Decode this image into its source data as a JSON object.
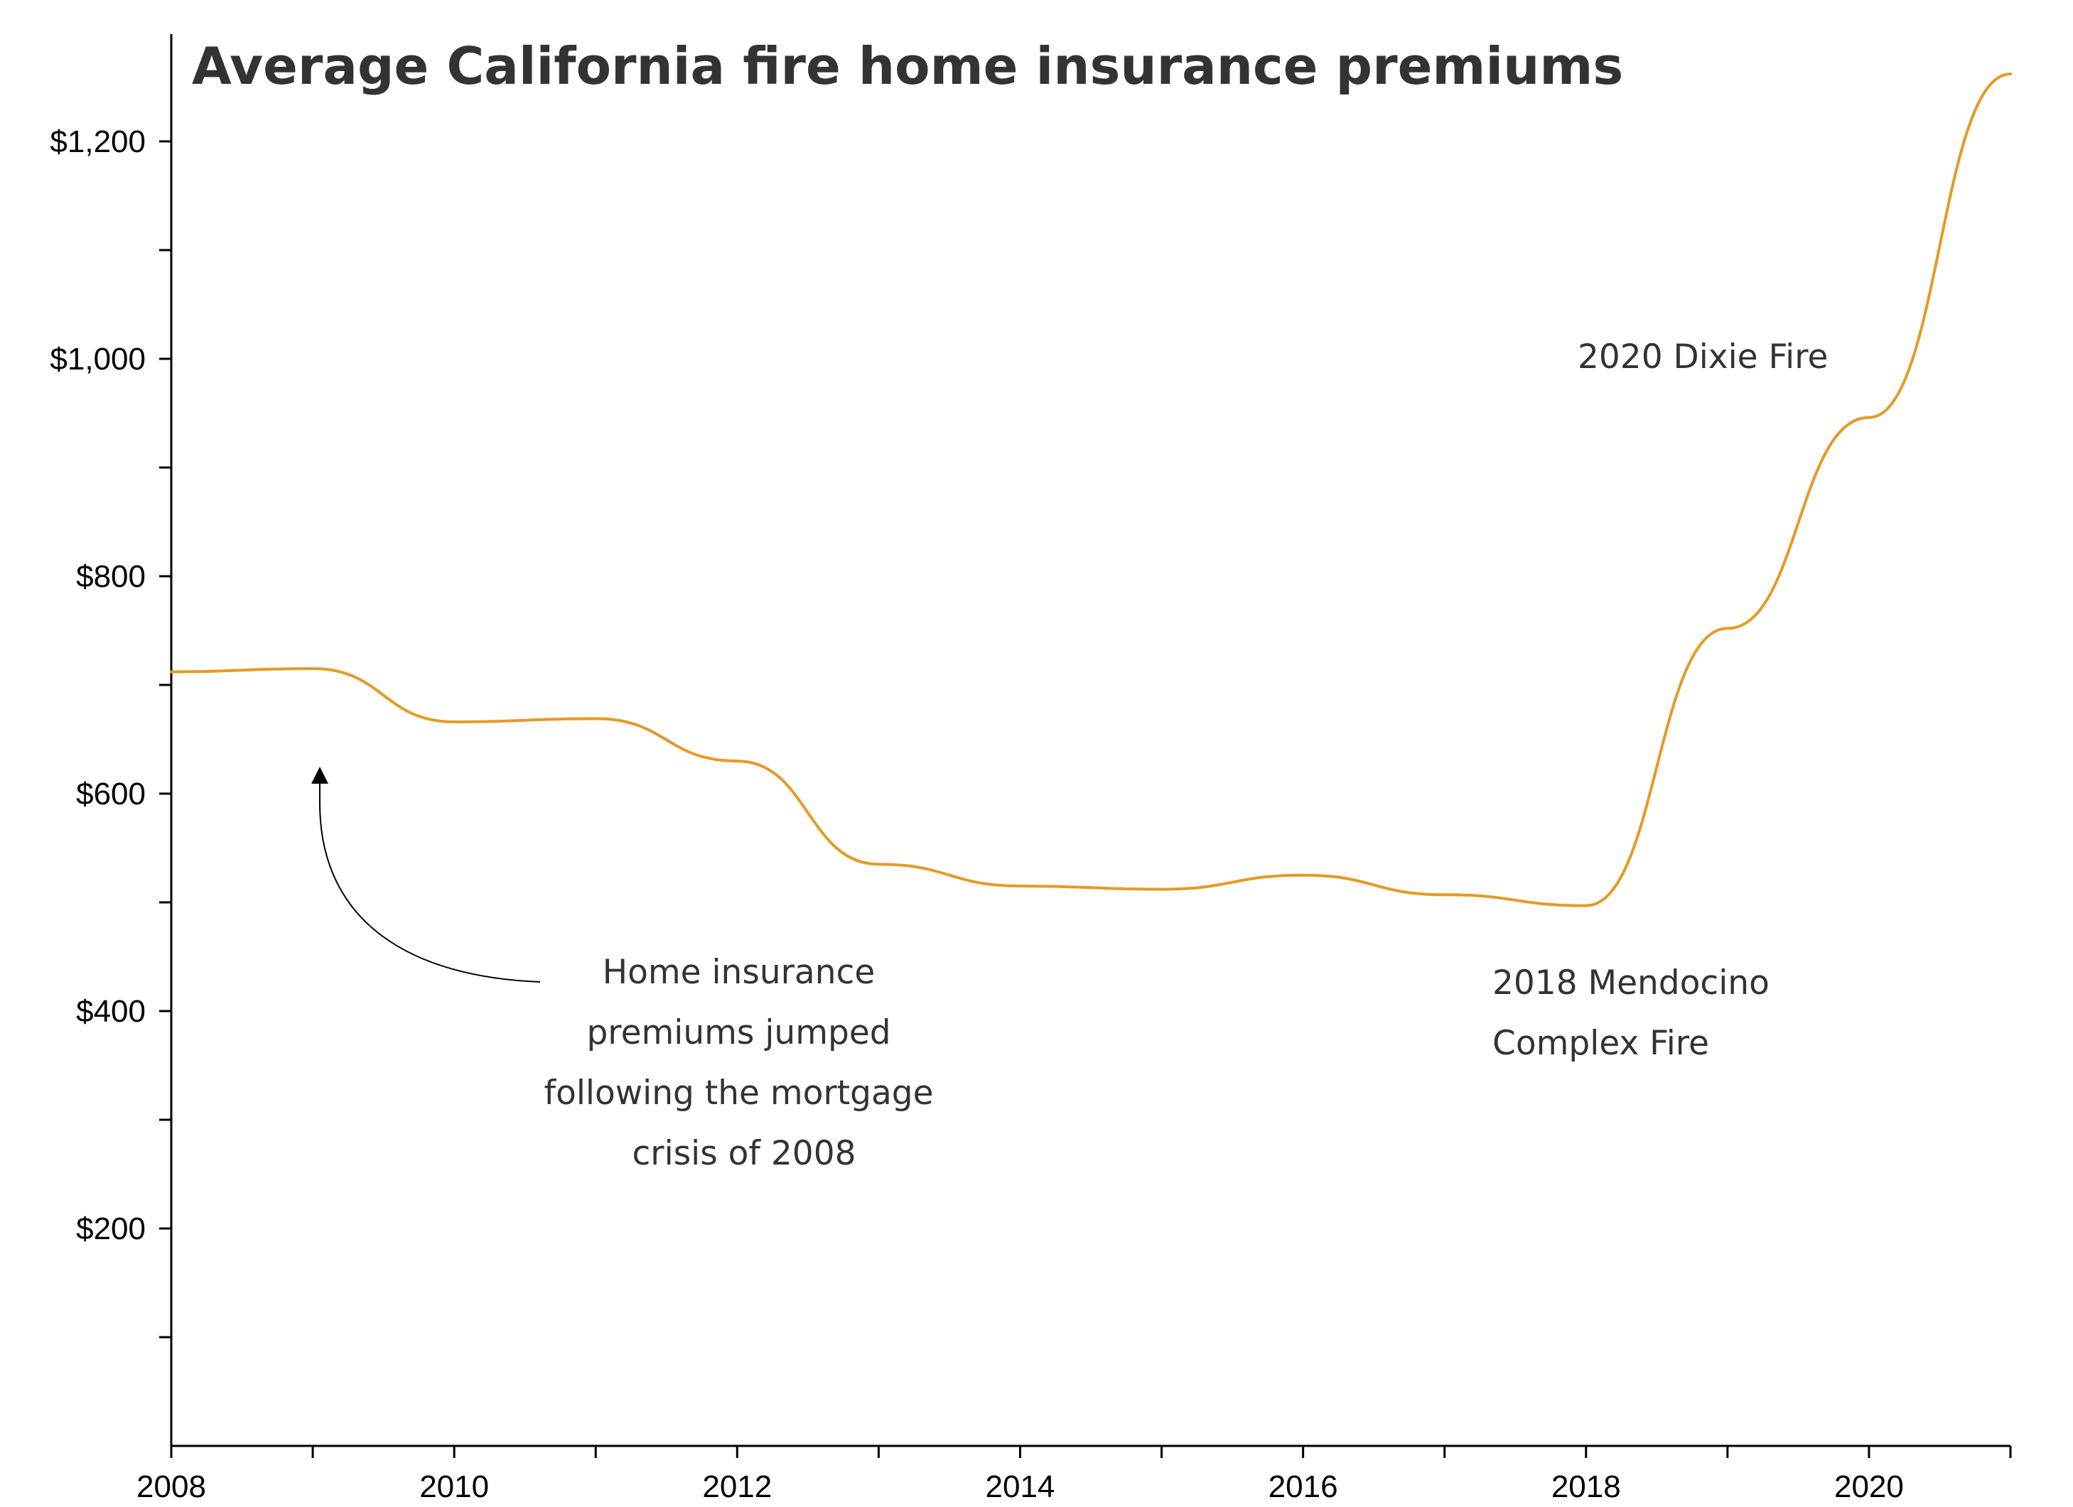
{
  "chart_data": {
    "type": "line",
    "title": "Average California fire home insurance premiums",
    "xlabel": "",
    "ylabel": "",
    "xlim": [
      2008,
      2021
    ],
    "ylim": [
      0,
      1300
    ],
    "x_ticks": [
      2008,
      2009,
      2010,
      2011,
      2012,
      2013,
      2014,
      2015,
      2016,
      2017,
      2018,
      2019,
      2020,
      2021
    ],
    "x_tick_labels": [
      "2008",
      "2010",
      "2012",
      "2014",
      "2016",
      "2018",
      "2020"
    ],
    "x_tick_label_values": [
      2008,
      2010,
      2012,
      2014,
      2016,
      2018,
      2020
    ],
    "y_ticks": [
      100,
      200,
      300,
      400,
      500,
      600,
      700,
      800,
      900,
      1000,
      1100,
      1200
    ],
    "y_tick_labels": [
      "$200",
      "$400",
      "$600",
      "$800",
      "$1,000",
      "$1,200"
    ],
    "y_tick_label_values": [
      200,
      400,
      600,
      800,
      1000,
      1200
    ],
    "grid": false,
    "series": [
      {
        "color": "#E59A25",
        "x": [
          2008,
          2009,
          2010,
          2011,
          2012,
          2013,
          2014,
          2015,
          2016,
          2017,
          2018,
          2019,
          2020,
          2021
        ],
        "values": [
          712,
          715,
          666,
          669,
          630,
          535,
          515,
          512,
          525,
          507,
          497,
          752,
          946,
          1262
        ]
      }
    ],
    "annotations": [
      {
        "lines": [
          "Home insurance",
          "premiums jumped",
          "following the mortgage",
          "crisis of 2008"
        ],
        "arrow_to": [
          2009.05,
          630
        ]
      },
      {
        "lines": [
          "2018 Mendocino",
          "Complex Fire"
        ]
      },
      {
        "lines": [
          "2020 Dixie Fire"
        ]
      }
    ]
  }
}
